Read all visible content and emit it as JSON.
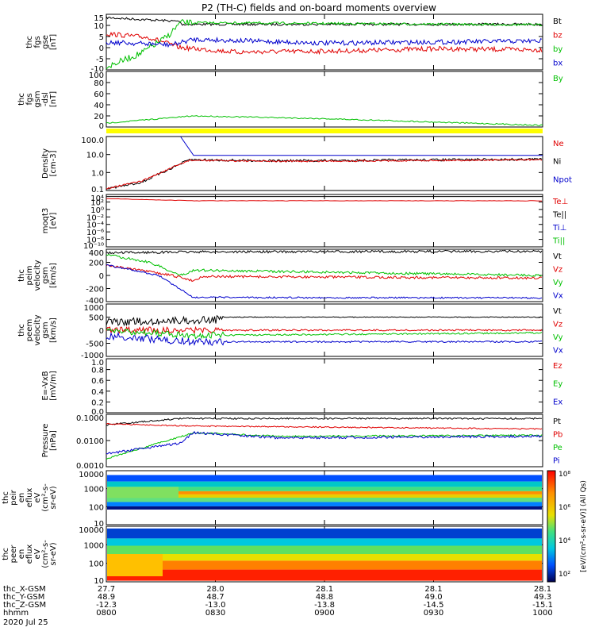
{
  "title": "P2 (TH-C) fields and on-board moments overview",
  "colors": {
    "black": "#000000",
    "red": "#e00000",
    "green": "#00c000",
    "blue": "#0000cc",
    "yellow": "#ffff00"
  },
  "panels": [
    {
      "id": "fgs",
      "ylabel": [
        "thc",
        "fgs",
        "gse",
        "[nT]"
      ],
      "yticks": [
        "15",
        "10",
        "5",
        "0",
        "-5",
        "-10"
      ],
      "legend": [
        {
          "text": "Bt",
          "color": "#000000"
        },
        {
          "text": "bz",
          "color": "#e00000"
        },
        {
          "text": "by",
          "color": "#00c000"
        },
        {
          "text": "bx",
          "color": "#0000cc"
        }
      ]
    },
    {
      "id": "fgs_dsl",
      "ylabel": [
        "thc",
        "fgs",
        "gsm",
        "-dsl",
        "[nT]"
      ],
      "yticks": [
        "100",
        "80",
        "60",
        "40",
        "20",
        "0"
      ],
      "legend": [
        {
          "text": "By",
          "color": "#00c000"
        }
      ]
    },
    {
      "id": "density",
      "ylabel": [
        "Density",
        "[cm-3]"
      ],
      "yticks": [
        "100.0",
        "10.0",
        "1.0",
        "0.1"
      ],
      "legend": [
        {
          "text": "Ne",
          "color": "#e00000"
        },
        {
          "text": "Ni",
          "color": "#000000"
        },
        {
          "text": "Npot",
          "color": "#0000cc"
        }
      ]
    },
    {
      "id": "temp",
      "ylabel": [
        "moqt3",
        "[eV]"
      ],
      "yticks": [
        "10⁴",
        "10²",
        "10⁰",
        "10⁻²",
        "10⁻⁴",
        "10⁻⁶",
        "10⁻⁸",
        "10⁻¹⁰"
      ],
      "legend": [
        {
          "text": "Te⊥",
          "color": "#e00000"
        },
        {
          "text": "Te||",
          "color": "#000000"
        },
        {
          "text": "Ti⊥",
          "color": "#0000cc"
        },
        {
          "text": "Ti||",
          "color": "#00c000"
        }
      ]
    },
    {
      "id": "vi",
      "ylabel": [
        "thc",
        "peim",
        "velocity",
        "gsm",
        "[km/s]"
      ],
      "yticks": [
        "400",
        "200",
        "0",
        "-200",
        "-400"
      ],
      "legend": [
        {
          "text": "Vt",
          "color": "#000000"
        },
        {
          "text": "Vz",
          "color": "#e00000"
        },
        {
          "text": "Vy",
          "color": "#00c000"
        },
        {
          "text": "Vx",
          "color": "#0000cc"
        }
      ]
    },
    {
      "id": "ve",
      "ylabel": [
        "thc",
        "peem",
        "velocity",
        "gsm",
        "[km/s]"
      ],
      "yticks": [
        "1000",
        "500",
        "0",
        "-500",
        "-1000"
      ],
      "legend": [
        {
          "text": "Vt",
          "color": "#000000"
        },
        {
          "text": "Vz",
          "color": "#e00000"
        },
        {
          "text": "Vy",
          "color": "#00c000"
        },
        {
          "text": "Vx",
          "color": "#0000cc"
        }
      ]
    },
    {
      "id": "efield",
      "ylabel": [
        "E=-VxB",
        "[mV/m]"
      ],
      "yticks": [
        "1.0",
        "0.8",
        "0.6",
        "0.4",
        "0.2",
        "0.0"
      ],
      "legend": [
        {
          "text": "Ez",
          "color": "#e00000"
        },
        {
          "text": "Ey",
          "color": "#00c000"
        },
        {
          "text": "Ex",
          "color": "#0000cc"
        }
      ]
    },
    {
      "id": "pressure",
      "ylabel": [
        "Pressure",
        "[nPa]"
      ],
      "yticks": [
        "0.1000",
        "0.0100",
        "0.0010"
      ],
      "legend": [
        {
          "text": "Pt",
          "color": "#000000"
        },
        {
          "text": "Pb",
          "color": "#e00000"
        },
        {
          "text": "Pe",
          "color": "#00c000"
        },
        {
          "text": "Pi",
          "color": "#0000cc"
        }
      ]
    },
    {
      "id": "ion_spec",
      "ylabel": [
        "thc",
        "peir",
        "en",
        "eflux",
        "eV",
        "(cm²-s-",
        "sr-eV)"
      ],
      "yticks": [
        "10000",
        "1000",
        "100",
        "10"
      ],
      "legend": []
    },
    {
      "id": "ele_spec",
      "ylabel": [
        "thc",
        "peer",
        "en",
        "eflux",
        "eV",
        "(cm²-s-",
        "sr-eV)"
      ],
      "yticks": [
        "10000",
        "1000",
        "100",
        "10"
      ],
      "legend": []
    }
  ],
  "colorbar": {
    "label": "[eV/(cm²-s-sr-eV)]  (All Qs)",
    "ticks": [
      "10⁸",
      "10⁶",
      "10⁴",
      "10²"
    ]
  },
  "xaxis": {
    "rows": [
      {
        "label": "thc_X-GSM",
        "values": [
          "27.7",
          "28.0",
          "28.1",
          "28.1",
          "28.1"
        ]
      },
      {
        "label": "thc_Y-GSM",
        "values": [
          "48.9",
          "48.7",
          "48.8",
          "49.0",
          "49.3"
        ]
      },
      {
        "label": "thc_Z-GSM",
        "values": [
          "-12.3",
          "-13.0",
          "-13.8",
          "-14.5",
          "-15.1"
        ]
      },
      {
        "label": "hhmm",
        "values": [
          "0800",
          "0830",
          "0900",
          "0930",
          "1000"
        ]
      }
    ],
    "date": "2020 Jul 25"
  },
  "chart_data": {
    "type": "line",
    "title": "P2 (TH-C) fields and on-board moments overview",
    "x": [
      "0800",
      "0830",
      "0900",
      "0930",
      "1000"
    ],
    "xlabel": "hhmm",
    "panels": [
      {
        "name": "fgs gse [nT]",
        "ylim": [
          -10,
          15
        ],
        "series": [
          {
            "name": "Bt",
            "approx": [
              [
                0,
                10
              ],
              [
                0.2,
                9.5
              ],
              [
                0.5,
                9
              ],
              [
                1,
                8.5
              ]
            ]
          },
          {
            "name": "bz",
            "approx": [
              [
                0,
                4
              ],
              [
                0.15,
                1
              ],
              [
                0.5,
                -1
              ],
              [
                1,
                -2
              ]
            ]
          },
          {
            "name": "by",
            "approx": [
              [
                0,
                -10
              ],
              [
                0.1,
                -3
              ],
              [
                0.2,
                9
              ],
              [
                1,
                8
              ]
            ]
          },
          {
            "name": "bx",
            "approx": [
              [
                0,
                3
              ],
              [
                0.2,
                2
              ],
              [
                0.5,
                2
              ],
              [
                1,
                3
              ]
            ]
          }
        ]
      },
      {
        "name": "fgs gsm-dsl [nT]",
        "ylim": [
          -10,
          100
        ],
        "series": [
          {
            "name": "By",
            "approx": [
              [
                0,
                0
              ],
              [
                0.2,
                9
              ],
              [
                0.5,
                6
              ],
              [
                1,
                -2
              ]
            ]
          }
        ]
      },
      {
        "name": "Density [cm-3]",
        "ylim": [
          0.1,
          200
        ],
        "log": true,
        "series": [
          {
            "name": "Ne",
            "approx": [
              [
                0,
                0.1
              ],
              [
                0.2,
                8
              ],
              [
                0.5,
                7
              ],
              [
                1,
                8
              ]
            ]
          },
          {
            "name": "Ni",
            "approx": [
              [
                0,
                0.1
              ],
              [
                0.2,
                8
              ],
              [
                0.5,
                7
              ],
              [
                1,
                8
              ]
            ]
          },
          {
            "name": "Npot",
            "approx": [
              [
                0.2,
                200
              ],
              [
                0.25,
                15
              ],
              [
                1,
                15
              ]
            ]
          }
        ]
      },
      {
        "name": "moqt3 [eV]",
        "ylim": [
          1e-10,
          10000.0
        ],
        "log": true
      },
      {
        "name": "peim velocity gsm [km/s]",
        "ylim": [
          -400,
          400
        ],
        "series": [
          {
            "name": "Vt",
            "approx": [
              [
                0,
                350
              ],
              [
                0.2,
                370
              ],
              [
                1,
                370
              ]
            ]
          },
          {
            "name": "Vz",
            "approx": [
              [
                0,
                200
              ],
              [
                0.2,
                -50
              ],
              [
                1,
                -30
              ]
            ]
          },
          {
            "name": "Vy",
            "approx": [
              [
                0,
                350
              ],
              [
                0.1,
                100
              ],
              [
                0.2,
                0
              ],
              [
                1,
                -20
              ]
            ]
          },
          {
            "name": "Vx",
            "approx": [
              [
                0,
                200
              ],
              [
                0.13,
                -50
              ],
              [
                0.2,
                -370
              ],
              [
                1,
                -370
              ]
            ]
          }
        ]
      },
      {
        "name": "peem velocity gsm [km/s]",
        "ylim": [
          -1000,
          1000
        ],
        "series": [
          {
            "name": "Vt",
            "approx": [
              [
                0,
                500
              ],
              [
                0.2,
                400
              ],
              [
                1,
                400
              ]
            ]
          },
          {
            "name": "Vz",
            "approx": [
              [
                0,
                0
              ],
              [
                1,
                0
              ]
            ]
          },
          {
            "name": "Vy",
            "approx": [
              [
                0,
                0
              ],
              [
                0.2,
                -200
              ],
              [
                1,
                -100
              ]
            ]
          },
          {
            "name": "Vx",
            "approx": [
              [
                0,
                -200
              ],
              [
                0.2,
                -500
              ],
              [
                1,
                -450
              ]
            ]
          }
        ]
      },
      {
        "name": "E=-VxB [mV/m]",
        "ylim": [
          0,
          1
        ]
      },
      {
        "name": "Pressure [nPa]",
        "ylim": [
          0.001,
          0.1
        ],
        "log": true,
        "series": [
          {
            "name": "Pt",
            "approx": [
              [
                0,
                0.05
              ],
              [
                0.2,
                0.06
              ],
              [
                1,
                0.06
              ]
            ]
          },
          {
            "name": "Pb",
            "approx": [
              [
                0,
                0.04
              ],
              [
                0.2,
                0.04
              ],
              [
                1,
                0.03
              ]
            ]
          },
          {
            "name": "Pe",
            "approx": [
              [
                0,
                0.002
              ],
              [
                0.2,
                0.015
              ],
              [
                1,
                0.012
              ]
            ]
          },
          {
            "name": "Pi",
            "approx": [
              [
                0,
                0.002
              ],
              [
                0.2,
                0.015
              ],
              [
                1,
                0.012
              ]
            ]
          }
        ]
      }
    ]
  }
}
